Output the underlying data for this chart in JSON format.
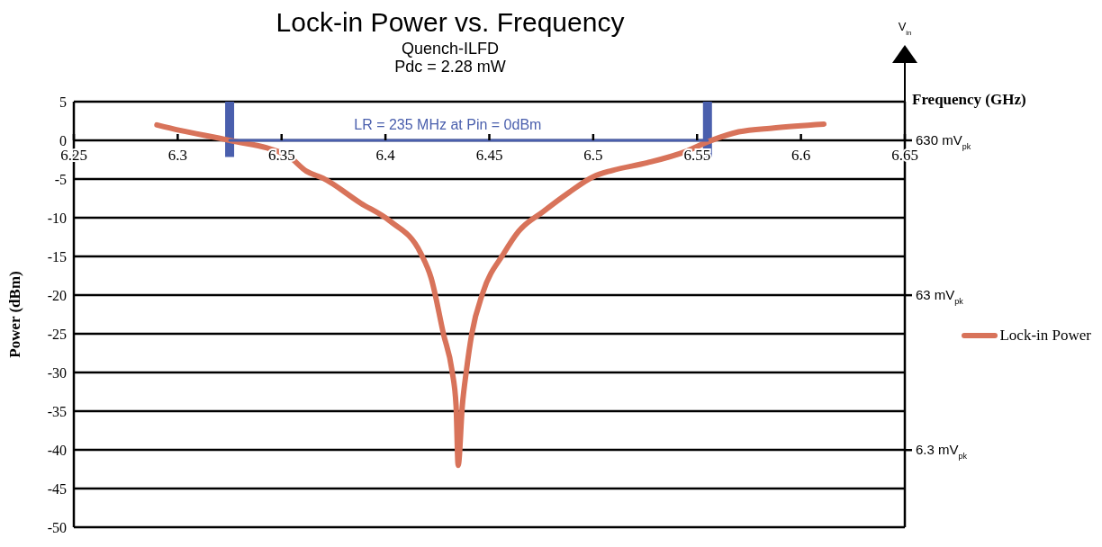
{
  "chart_data": {
    "type": "line",
    "title": "Lock-in Power vs. Frequency",
    "subtitle": "Quench-ILFD\nPdc = 2.28 mW",
    "xlabel": "Frequency (GHz)",
    "ylabel": "Power (dBm)",
    "y2label": "V$_{in}$",
    "series": [
      {
        "name": "Lock-in Power",
        "color": "#d8735a",
        "x": [
          6.29,
          6.301,
          6.325,
          6.353,
          6.362,
          6.37,
          6.388,
          6.402,
          6.417,
          6.422,
          6.428,
          6.432,
          6.434,
          6.435,
          6.437,
          6.439,
          6.4415,
          6.447,
          6.457,
          6.464,
          6.476,
          6.488,
          6.5,
          6.509,
          6.526,
          6.544,
          6.556,
          6.57,
          6.587,
          6.611
        ],
        "values": [
          2,
          1.3,
          0,
          -2,
          -4,
          -4.9,
          -8.1,
          -10.4,
          -14.6,
          -17.8,
          -25.1,
          -29.7,
          -34.3,
          -42,
          -34.3,
          -29.7,
          -25.1,
          -19.6,
          -14.6,
          -11.8,
          -9.2,
          -6.8,
          -4.7,
          -3.9,
          -2.9,
          -1.5,
          -0.1,
          1.1,
          1.6,
          2.1
        ]
      },
      {
        "type": "line",
        "color": "#4a5fad",
        "x": [
          6.325,
          6.555
        ],
        "values": [
          0,
          0
        ]
      }
    ],
    "xlim": [
      6.25,
      6.65
    ],
    "xticks": [
      6.25,
      6.3,
      6.35,
      6.4,
      6.45,
      6.5,
      6.55,
      6.6,
      6.65
    ],
    "ylim": [
      -50,
      5
    ],
    "yticks": [
      -50,
      -45,
      -40,
      -35,
      -30,
      -25,
      -20,
      -15,
      -10,
      -5,
      0,
      5
    ],
    "y2lim": [
      2,
      1120
    ],
    "y2ticks": [
      {
        "value": 630,
        "label": "630 mV$_{pk}$"
      },
      {
        "value": 63,
        "label": "63 mV$_{pk}$"
      },
      {
        "value": 6.3,
        "label": "6.3 mV$_{pk}$"
      }
    ],
    "log": "y2",
    "ref_lines": [
      {
        "axis": "x",
        "value": 6.325,
        "color": "#4a5fad"
      },
      {
        "axis": "x",
        "value": 6.555,
        "color": "#4a5fad"
      }
    ],
    "annotations": [
      {
        "text": "LR = 235 MHz at Pin = 0dBm",
        "x": 6.43,
        "y": 0
      }
    ],
    "grid": "y",
    "legend": "right"
  }
}
